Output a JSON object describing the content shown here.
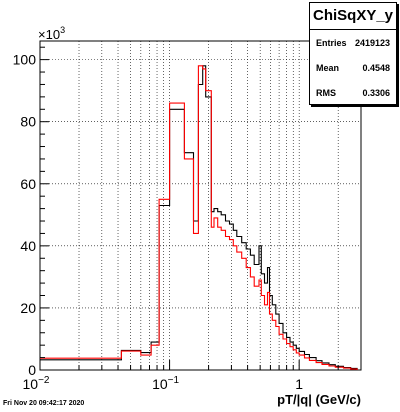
{
  "chart_data": {
    "type": "histogram",
    "title": "ChiSqXY_y",
    "xlabel": "pT/|q| (GeV/c)",
    "ylabel": "",
    "x_scale": "log",
    "xlim": [
      0.01,
      3.0
    ],
    "ylim": [
      0,
      106000
    ],
    "y_multiplier_label": "×10",
    "y_multiplier_exp": "3",
    "x_ticks": [
      {
        "value": 0.01,
        "base": "10",
        "exp": "−2"
      },
      {
        "value": 0.1,
        "base": "10",
        "exp": "−1"
      },
      {
        "value": 1,
        "base": "1",
        "exp": ""
      }
    ],
    "y_ticks": [
      {
        "value": 0,
        "label": "0"
      },
      {
        "value": 20000,
        "label": "20"
      },
      {
        "value": 40000,
        "label": "40"
      },
      {
        "value": 60000,
        "label": "60"
      },
      {
        "value": 80000,
        "label": "80"
      },
      {
        "value": 100000,
        "label": "100"
      }
    ],
    "grid": true,
    "series": [
      {
        "color": "#000000",
        "bins": [
          [
            0.01,
            3300
          ],
          [
            0.0425,
            6300
          ],
          [
            0.06,
            5600
          ],
          [
            0.072,
            9000
          ],
          [
            0.083,
            53000
          ],
          [
            0.1,
            84000
          ],
          [
            0.13,
            70000
          ],
          [
            0.153,
            48000
          ],
          [
            0.167,
            92000
          ],
          [
            0.18,
            98000
          ],
          [
            0.19,
            88000
          ],
          [
            0.21,
            51000
          ],
          [
            0.22,
            52000
          ],
          [
            0.235,
            51000
          ],
          [
            0.25,
            50000
          ],
          [
            0.27,
            48000
          ],
          [
            0.29,
            47000
          ],
          [
            0.31,
            45000
          ],
          [
            0.33,
            43000
          ],
          [
            0.36,
            41000
          ],
          [
            0.39,
            39000
          ],
          [
            0.42,
            37000
          ],
          [
            0.45,
            34000
          ],
          [
            0.49,
            40000
          ],
          [
            0.51,
            31000
          ],
          [
            0.54,
            28000
          ],
          [
            0.57,
            33000
          ],
          [
            0.59,
            24000
          ],
          [
            0.62,
            21000
          ],
          [
            0.66,
            18000
          ],
          [
            0.7,
            15000
          ],
          [
            0.75,
            12000
          ],
          [
            0.8,
            10500
          ],
          [
            0.85,
            9000
          ],
          [
            0.9,
            8000
          ],
          [
            0.95,
            7000
          ],
          [
            1.0,
            6000
          ],
          [
            1.1,
            5000
          ],
          [
            1.2,
            4000
          ],
          [
            1.35,
            3000
          ],
          [
            1.5,
            2300
          ],
          [
            1.7,
            1700
          ],
          [
            1.9,
            1200
          ],
          [
            2.2,
            800
          ],
          [
            2.5,
            500
          ],
          [
            2.8,
            0
          ]
        ]
      },
      {
        "color": "#ff0000",
        "bins": [
          [
            0.01,
            3800
          ],
          [
            0.0425,
            6100
          ],
          [
            0.06,
            4800
          ],
          [
            0.072,
            8000
          ],
          [
            0.083,
            55000
          ],
          [
            0.1,
            86000
          ],
          [
            0.13,
            68000
          ],
          [
            0.153,
            44000
          ],
          [
            0.167,
            98000
          ],
          [
            0.18,
            97000
          ],
          [
            0.19,
            90000
          ],
          [
            0.21,
            46000
          ],
          [
            0.22,
            49000
          ],
          [
            0.235,
            46000
          ],
          [
            0.25,
            45000
          ],
          [
            0.27,
            43000
          ],
          [
            0.29,
            42000
          ],
          [
            0.31,
            40000
          ],
          [
            0.33,
            38000
          ],
          [
            0.36,
            36000
          ],
          [
            0.39,
            33000
          ],
          [
            0.42,
            30000
          ],
          [
            0.45,
            27000
          ],
          [
            0.49,
            29000
          ],
          [
            0.51,
            24000
          ],
          [
            0.54,
            21000
          ],
          [
            0.57,
            25000
          ],
          [
            0.59,
            18000
          ],
          [
            0.62,
            16000
          ],
          [
            0.66,
            14000
          ],
          [
            0.7,
            11500
          ],
          [
            0.75,
            10000
          ],
          [
            0.8,
            8500
          ],
          [
            0.85,
            7500
          ],
          [
            0.9,
            6500
          ],
          [
            0.95,
            5500
          ],
          [
            1.0,
            4800
          ],
          [
            1.1,
            3900
          ],
          [
            1.2,
            3100
          ],
          [
            1.35,
            2400
          ],
          [
            1.5,
            1800
          ],
          [
            1.7,
            1300
          ],
          [
            1.9,
            900
          ],
          [
            2.2,
            600
          ],
          [
            2.5,
            300
          ],
          [
            2.8,
            0
          ]
        ]
      }
    ]
  },
  "stats": {
    "title": "ChiSqXY_y",
    "rows": [
      {
        "key": "Entries",
        "value": "2419123"
      },
      {
        "key": "Mean",
        "value": "0.4548"
      },
      {
        "key": "RMS",
        "value": "0.3306"
      }
    ]
  },
  "footer": {
    "timestamp": "Fri Nov 20 09:42:17 2020"
  }
}
